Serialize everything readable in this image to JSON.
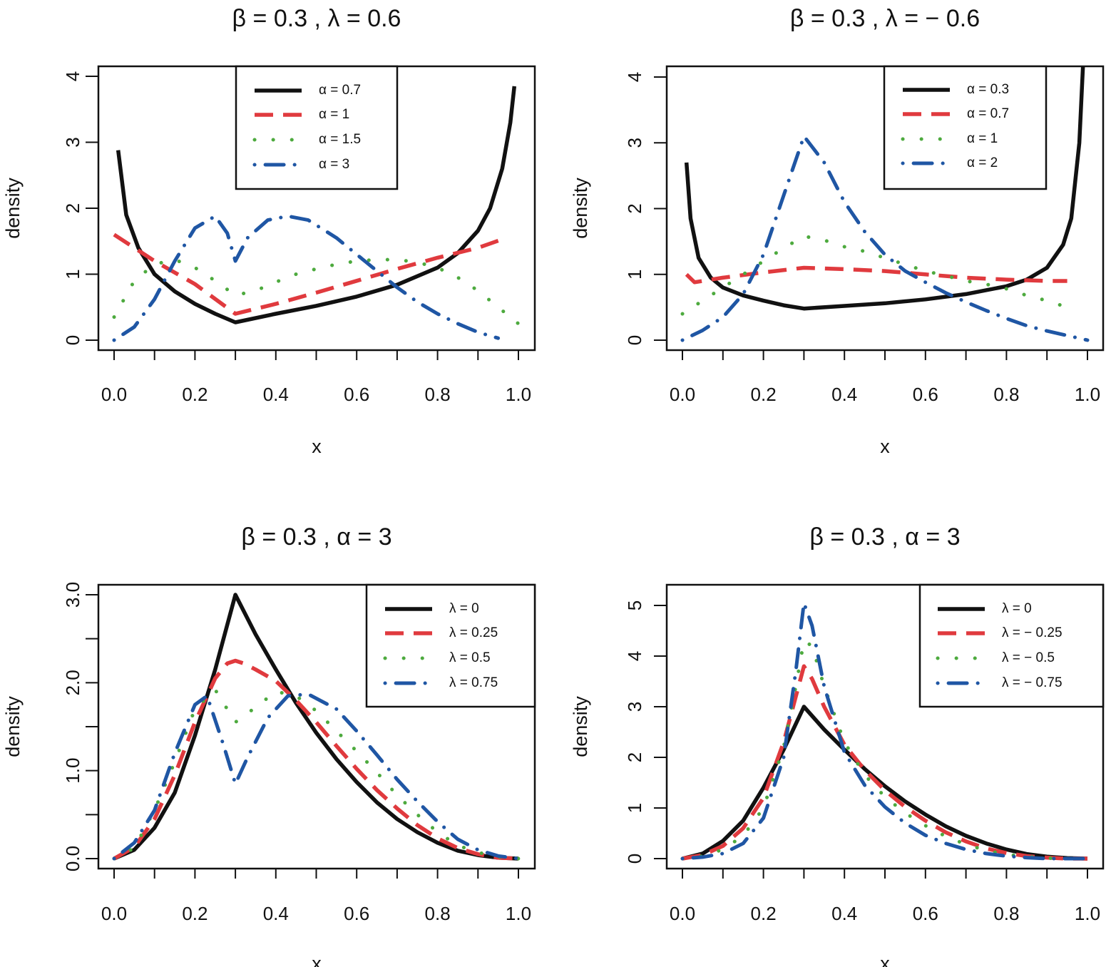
{
  "colors": {
    "black": "#111111",
    "red": "#e03a3e",
    "green": "#4daa3e",
    "blue": "#1f56a4"
  },
  "chart_data": [
    {
      "type": "line",
      "title": "β = 0.3 , λ = 0.6",
      "xlabel": "x",
      "ylabel": "density",
      "xlim": [
        0,
        1
      ],
      "ylim": [
        0,
        4
      ],
      "xticks": [
        "0.0",
        "0.2",
        "0.4",
        "0.6",
        "0.8",
        "1.0"
      ],
      "yticks": [
        "0",
        "1",
        "2",
        "3",
        "4"
      ],
      "legend_position": "top-center",
      "series": [
        {
          "name": "α = 0.7",
          "style": "solid",
          "color": "black",
          "x": [
            0.01,
            0.03,
            0.06,
            0.1,
            0.15,
            0.2,
            0.25,
            0.3,
            0.4,
            0.5,
            0.6,
            0.7,
            0.8,
            0.85,
            0.9,
            0.93,
            0.96,
            0.98,
            0.99
          ],
          "y": [
            2.88,
            1.9,
            1.4,
            1.0,
            0.74,
            0.55,
            0.4,
            0.27,
            0.4,
            0.52,
            0.66,
            0.84,
            1.1,
            1.32,
            1.66,
            2.0,
            2.6,
            3.3,
            3.85
          ]
        },
        {
          "name": "α = 1",
          "style": "dashed",
          "color": "red",
          "x": [
            0.0,
            0.1,
            0.2,
            0.3,
            0.4,
            0.5,
            0.6,
            0.7,
            0.8,
            0.9,
            0.97
          ],
          "y": [
            1.6,
            1.2,
            0.85,
            0.4,
            0.55,
            0.72,
            0.9,
            1.08,
            1.25,
            1.4,
            1.55
          ]
        },
        {
          "name": "α = 1.5",
          "style": "dotted",
          "color": "green",
          "x": [
            0.0,
            0.05,
            0.1,
            0.15,
            0.2,
            0.25,
            0.3,
            0.35,
            0.4,
            0.45,
            0.5,
            0.55,
            0.6,
            0.65,
            0.7,
            0.75,
            0.8,
            0.85,
            0.9,
            0.95,
            1.0
          ],
          "y": [
            0.35,
            0.9,
            1.15,
            1.22,
            1.1,
            0.9,
            0.68,
            0.75,
            0.88,
            1.0,
            1.08,
            1.15,
            1.2,
            1.22,
            1.22,
            1.18,
            1.1,
            0.95,
            0.75,
            0.5,
            0.25
          ]
        },
        {
          "name": "α = 3",
          "style": "dotdash",
          "color": "blue",
          "x": [
            0.0,
            0.05,
            0.1,
            0.15,
            0.2,
            0.25,
            0.28,
            0.3,
            0.33,
            0.38,
            0.43,
            0.48,
            0.55,
            0.6,
            0.65,
            0.7,
            0.75,
            0.8,
            0.85,
            0.9,
            0.95
          ],
          "y": [
            0.0,
            0.2,
            0.62,
            1.2,
            1.7,
            1.88,
            1.62,
            1.2,
            1.55,
            1.82,
            1.88,
            1.82,
            1.55,
            1.3,
            1.05,
            0.8,
            0.58,
            0.4,
            0.25,
            0.12,
            0.03
          ]
        }
      ]
    },
    {
      "type": "line",
      "title": "β = 0.3 , λ = − 0.6",
      "xlabel": "x",
      "ylabel": "density",
      "xlim": [
        0,
        1
      ],
      "ylim": [
        0,
        4.5
      ],
      "xticks": [
        "0.0",
        "0.2",
        "0.4",
        "0.6",
        "0.8",
        "1.0"
      ],
      "yticks": [
        "0",
        "1",
        "2",
        "3",
        "4"
      ],
      "legend_position": "top-right",
      "series": [
        {
          "name": "α = 0.3",
          "style": "solid",
          "color": "black",
          "x": [
            0.01,
            0.02,
            0.04,
            0.07,
            0.1,
            0.15,
            0.2,
            0.25,
            0.3,
            0.4,
            0.5,
            0.6,
            0.7,
            0.8,
            0.85,
            0.9,
            0.94,
            0.96,
            0.98,
            0.99
          ],
          "y": [
            2.7,
            1.85,
            1.25,
            0.95,
            0.8,
            0.68,
            0.6,
            0.53,
            0.48,
            0.52,
            0.56,
            0.62,
            0.7,
            0.82,
            0.92,
            1.1,
            1.45,
            1.85,
            3.0,
            4.3
          ]
        },
        {
          "name": "α = 0.7",
          "style": "dashed",
          "color": "red",
          "x": [
            0.01,
            0.03,
            0.1,
            0.2,
            0.3,
            0.4,
            0.5,
            0.6,
            0.7,
            0.8,
            0.9,
            0.95
          ],
          "y": [
            1.0,
            0.88,
            0.95,
            1.03,
            1.1,
            1.08,
            1.05,
            1.0,
            0.95,
            0.92,
            0.9,
            0.9
          ]
        },
        {
          "name": "α = 1",
          "style": "dotted",
          "color": "green",
          "x": [
            0.0,
            0.05,
            0.1,
            0.15,
            0.2,
            0.25,
            0.3,
            0.35,
            0.4,
            0.45,
            0.5,
            0.55,
            0.6,
            0.65,
            0.7,
            0.75,
            0.8,
            0.85,
            0.9,
            0.95
          ],
          "y": [
            0.4,
            0.6,
            0.8,
            1.0,
            1.2,
            1.4,
            1.58,
            1.52,
            1.42,
            1.35,
            1.25,
            1.15,
            1.05,
            0.98,
            0.9,
            0.85,
            0.78,
            0.68,
            0.6,
            0.5
          ]
        },
        {
          "name": "α = 2",
          "style": "dotdash",
          "color": "blue",
          "x": [
            0.0,
            0.05,
            0.1,
            0.15,
            0.2,
            0.25,
            0.3,
            0.35,
            0.4,
            0.45,
            0.5,
            0.55,
            0.6,
            0.65,
            0.7,
            0.75,
            0.8,
            0.85,
            0.9,
            0.95,
            1.0
          ],
          "y": [
            0.0,
            0.15,
            0.35,
            0.7,
            1.3,
            2.2,
            3.1,
            2.7,
            2.1,
            1.65,
            1.3,
            1.05,
            0.88,
            0.72,
            0.58,
            0.45,
            0.33,
            0.22,
            0.14,
            0.07,
            0.0
          ]
        }
      ]
    },
    {
      "type": "line",
      "title": "β = 0.3 , α = 3",
      "xlabel": "x",
      "ylabel": "density",
      "xlim": [
        0,
        1
      ],
      "ylim": [
        0,
        3
      ],
      "xticks": [
        "0.0",
        "0.2",
        "0.4",
        "0.6",
        "0.8",
        "1.0"
      ],
      "yticks": [
        "0.0",
        "1.0",
        "2.0",
        "3.0"
      ],
      "legend_position": "top-right",
      "series": [
        {
          "name": "λ = 0",
          "style": "solid",
          "color": "black",
          "x": [
            0.0,
            0.05,
            0.1,
            0.15,
            0.2,
            0.25,
            0.3,
            0.35,
            0.4,
            0.45,
            0.5,
            0.55,
            0.6,
            0.65,
            0.7,
            0.75,
            0.8,
            0.85,
            0.9,
            0.95,
            1.0
          ],
          "y": [
            0.0,
            0.1,
            0.35,
            0.75,
            1.4,
            2.15,
            3.0,
            2.55,
            2.15,
            1.77,
            1.43,
            1.13,
            0.87,
            0.64,
            0.45,
            0.3,
            0.18,
            0.09,
            0.04,
            0.01,
            0.0
          ]
        },
        {
          "name": "λ = 0.25",
          "style": "dashed",
          "color": "red",
          "x": [
            0.0,
            0.05,
            0.1,
            0.15,
            0.2,
            0.25,
            0.28,
            0.3,
            0.32,
            0.35,
            0.4,
            0.45,
            0.5,
            0.55,
            0.6,
            0.65,
            0.7,
            0.75,
            0.8,
            0.85,
            0.9,
            0.95,
            1.0
          ],
          "y": [
            0.0,
            0.13,
            0.45,
            0.95,
            1.55,
            2.05,
            2.22,
            2.25,
            2.22,
            2.15,
            2.02,
            1.8,
            1.55,
            1.28,
            1.02,
            0.78,
            0.57,
            0.38,
            0.23,
            0.12,
            0.05,
            0.01,
            0.0
          ]
        },
        {
          "name": "λ = 0.5",
          "style": "dotted",
          "color": "green",
          "x": [
            0.0,
            0.05,
            0.1,
            0.15,
            0.2,
            0.25,
            0.3,
            0.35,
            0.4,
            0.45,
            0.5,
            0.55,
            0.6,
            0.65,
            0.7,
            0.75,
            0.8,
            0.85,
            0.9,
            0.95,
            1.0
          ],
          "y": [
            0.0,
            0.12,
            0.55,
            1.1,
            1.7,
            1.92,
            1.55,
            1.72,
            1.9,
            1.85,
            1.68,
            1.45,
            1.22,
            0.98,
            0.72,
            0.5,
            0.3,
            0.15,
            0.07,
            0.02,
            0.0
          ]
        },
        {
          "name": "λ = 0.75",
          "style": "dotdash",
          "color": "blue",
          "x": [
            0.0,
            0.05,
            0.1,
            0.15,
            0.2,
            0.23,
            0.27,
            0.3,
            0.33,
            0.38,
            0.43,
            0.48,
            0.55,
            0.6,
            0.65,
            0.7,
            0.75,
            0.8,
            0.85,
            0.9,
            0.95,
            1.0
          ],
          "y": [
            0.0,
            0.18,
            0.55,
            1.2,
            1.75,
            1.85,
            1.3,
            0.85,
            1.15,
            1.6,
            1.85,
            1.87,
            1.7,
            1.45,
            1.18,
            0.9,
            0.65,
            0.42,
            0.22,
            0.1,
            0.03,
            0.0
          ]
        }
      ]
    },
    {
      "type": "line",
      "title": "β = 0.3 , α = 3",
      "xlabel": "x",
      "ylabel": "density",
      "xlim": [
        0,
        1
      ],
      "ylim": [
        0,
        5
      ],
      "xticks": [
        "0.0",
        "0.2",
        "0.4",
        "0.6",
        "0.8",
        "1.0"
      ],
      "yticks": [
        "0",
        "1",
        "2",
        "3",
        "4",
        "5"
      ],
      "legend_position": "top-right",
      "series": [
        {
          "name": "λ = 0",
          "style": "solid",
          "color": "black",
          "x": [
            0.0,
            0.05,
            0.1,
            0.15,
            0.2,
            0.25,
            0.3,
            0.35,
            0.4,
            0.45,
            0.5,
            0.55,
            0.6,
            0.65,
            0.7,
            0.75,
            0.8,
            0.85,
            0.9,
            0.95,
            1.0
          ],
          "y": [
            0.0,
            0.1,
            0.35,
            0.75,
            1.4,
            2.15,
            3.0,
            2.55,
            2.15,
            1.77,
            1.43,
            1.13,
            0.87,
            0.64,
            0.45,
            0.3,
            0.18,
            0.09,
            0.04,
            0.01,
            0.0
          ]
        },
        {
          "name": "λ = − 0.25",
          "style": "dashed",
          "color": "red",
          "x": [
            0.0,
            0.05,
            0.1,
            0.15,
            0.2,
            0.25,
            0.28,
            0.3,
            0.32,
            0.35,
            0.4,
            0.45,
            0.5,
            0.55,
            0.6,
            0.65,
            0.7,
            0.75,
            0.8,
            0.85,
            0.9,
            0.95,
            1.0
          ],
          "y": [
            0.0,
            0.07,
            0.25,
            0.6,
            1.2,
            2.3,
            3.2,
            3.8,
            3.55,
            3.0,
            2.25,
            1.75,
            1.35,
            1.02,
            0.75,
            0.52,
            0.34,
            0.2,
            0.11,
            0.05,
            0.02,
            0.0,
            0.0
          ]
        },
        {
          "name": "λ = − 0.5",
          "style": "dotted",
          "color": "green",
          "x": [
            0.0,
            0.05,
            0.1,
            0.15,
            0.2,
            0.25,
            0.28,
            0.3,
            0.32,
            0.35,
            0.4,
            0.45,
            0.5,
            0.55,
            0.6,
            0.65,
            0.7,
            0.75,
            0.8,
            0.85,
            0.9,
            0.95,
            1.0
          ],
          "y": [
            0.0,
            0.05,
            0.18,
            0.45,
            1.0,
            2.2,
            3.4,
            4.3,
            4.2,
            3.4,
            2.3,
            1.65,
            1.22,
            0.9,
            0.65,
            0.44,
            0.28,
            0.16,
            0.08,
            0.04,
            0.01,
            0.0,
            0.0
          ]
        },
        {
          "name": "λ = − 0.75",
          "style": "dotdash",
          "color": "blue",
          "x": [
            0.0,
            0.05,
            0.1,
            0.15,
            0.2,
            0.25,
            0.28,
            0.3,
            0.32,
            0.35,
            0.4,
            0.45,
            0.5,
            0.55,
            0.6,
            0.65,
            0.7,
            0.75,
            0.8,
            0.85,
            0.9,
            0.95,
            1.0
          ],
          "y": [
            0.0,
            0.03,
            0.1,
            0.3,
            0.8,
            2.0,
            3.7,
            5.05,
            4.6,
            3.4,
            2.1,
            1.45,
            1.02,
            0.7,
            0.46,
            0.3,
            0.18,
            0.1,
            0.05,
            0.02,
            0.0,
            0.0,
            0.0
          ]
        }
      ]
    }
  ]
}
